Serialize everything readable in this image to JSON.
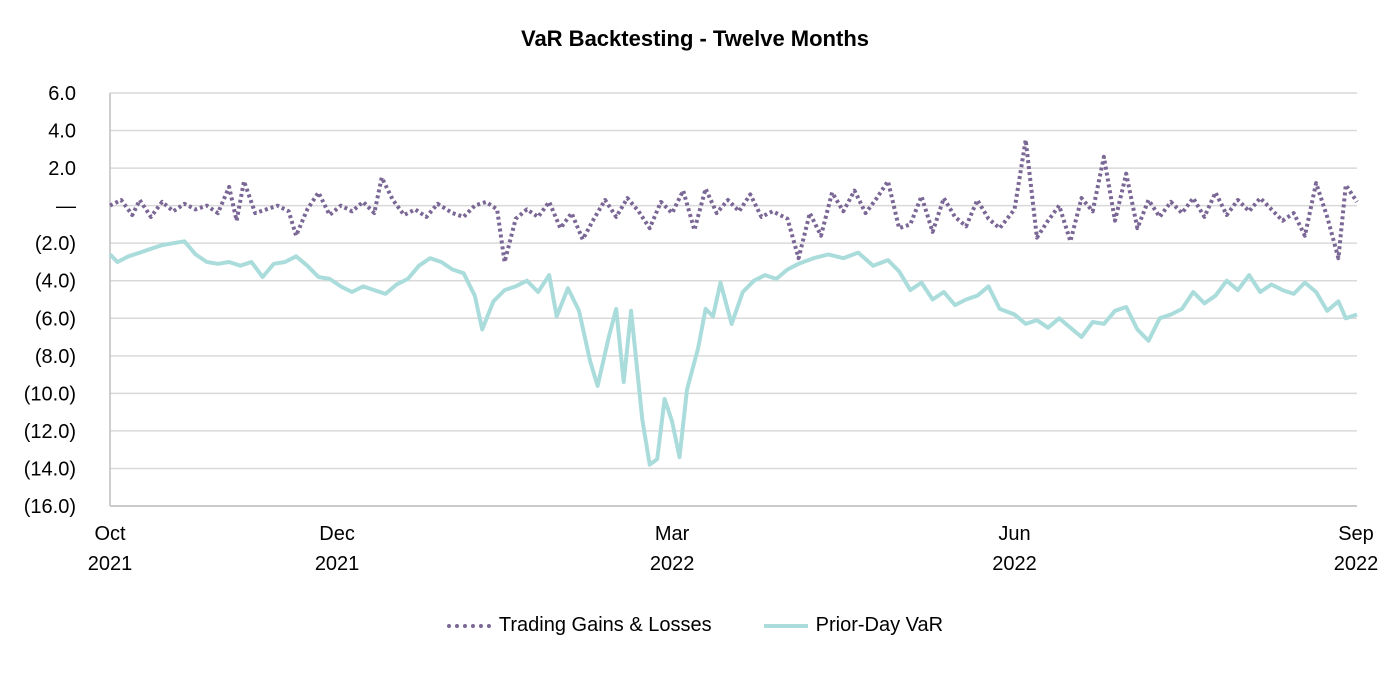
{
  "chart_data": {
    "type": "line",
    "title": "VaR Backtesting - Twelve Months",
    "ylim": [
      -16.0,
      6.0
    ],
    "y_ticks": [
      6,
      4,
      2,
      0,
      -2,
      -4,
      -6,
      -8,
      -10,
      -12,
      -14,
      -16
    ],
    "y_tick_labels": [
      "6.0",
      "4.0",
      "2.0",
      "—",
      "(2.0)",
      "(4.0)",
      "(6.0)",
      "(8.0)",
      "(10.0)",
      "(12.0)",
      "(14.0)",
      "(16.0)"
    ],
    "x_ticks": [
      {
        "line1": "Oct",
        "line2": "2021",
        "date": "2021-10-01"
      },
      {
        "line1": "Dec",
        "line2": "2021",
        "date": "2021-12-01"
      },
      {
        "line1": "Mar",
        "line2": "2022",
        "date": "2022-03-01"
      },
      {
        "line1": "Jun",
        "line2": "2022",
        "date": "2022-06-01"
      },
      {
        "line1": "Sep",
        "line2": "2022",
        "date": "2022-09-01"
      }
    ],
    "x_range": [
      "2021-10-01",
      "2022-09-01"
    ],
    "grid": true,
    "legend_position": "bottom",
    "series": [
      {
        "name": "Trading Gains & Losses",
        "color": "#7b6796",
        "style": "dotted",
        "points": [
          [
            "2021-10-01",
            0.0
          ],
          [
            "2021-10-04",
            0.3
          ],
          [
            "2021-10-07",
            -0.5
          ],
          [
            "2021-10-09",
            0.3
          ],
          [
            "2021-10-12",
            -0.6
          ],
          [
            "2021-10-15",
            0.2
          ],
          [
            "2021-10-18",
            -0.3
          ],
          [
            "2021-10-21",
            0.1
          ],
          [
            "2021-10-24",
            -0.2
          ],
          [
            "2021-10-27",
            0.0
          ],
          [
            "2021-10-30",
            -0.4
          ],
          [
            "2021-11-02",
            1.0
          ],
          [
            "2021-11-04",
            -0.8
          ],
          [
            "2021-11-06",
            1.3
          ],
          [
            "2021-11-09",
            -0.4
          ],
          [
            "2021-11-12",
            -0.2
          ],
          [
            "2021-11-15",
            0.0
          ],
          [
            "2021-11-18",
            -0.3
          ],
          [
            "2021-11-20",
            -1.6
          ],
          [
            "2021-11-23",
            -0.2
          ],
          [
            "2021-11-26",
            0.7
          ],
          [
            "2021-11-29",
            -0.5
          ],
          [
            "2021-12-02",
            0.0
          ],
          [
            "2021-12-05",
            -0.3
          ],
          [
            "2021-12-08",
            0.2
          ],
          [
            "2021-12-11",
            -0.4
          ],
          [
            "2021-12-13",
            1.5
          ],
          [
            "2021-12-16",
            0.3
          ],
          [
            "2021-12-19",
            -0.5
          ],
          [
            "2021-12-22",
            -0.2
          ],
          [
            "2021-12-25",
            -0.6
          ],
          [
            "2021-12-28",
            0.1
          ],
          [
            "2022-01-01",
            -0.4
          ],
          [
            "2022-01-04",
            -0.6
          ],
          [
            "2022-01-07",
            0.0
          ],
          [
            "2022-01-10",
            0.2
          ],
          [
            "2022-01-13",
            -0.2
          ],
          [
            "2022-01-15",
            -3.0
          ],
          [
            "2022-01-18",
            -0.7
          ],
          [
            "2022-01-21",
            -0.2
          ],
          [
            "2022-01-24",
            -0.6
          ],
          [
            "2022-01-27",
            0.2
          ],
          [
            "2022-01-30",
            -1.2
          ],
          [
            "2022-02-02",
            -0.4
          ],
          [
            "2022-02-05",
            -1.8
          ],
          [
            "2022-02-08",
            -0.7
          ],
          [
            "2022-02-11",
            0.3
          ],
          [
            "2022-02-14",
            -0.6
          ],
          [
            "2022-02-17",
            0.4
          ],
          [
            "2022-02-20",
            -0.3
          ],
          [
            "2022-02-23",
            -1.2
          ],
          [
            "2022-02-26",
            0.2
          ],
          [
            "2022-03-01",
            -0.4
          ],
          [
            "2022-03-04",
            0.8
          ],
          [
            "2022-03-07",
            -1.3
          ],
          [
            "2022-03-10",
            0.9
          ],
          [
            "2022-03-13",
            -0.4
          ],
          [
            "2022-03-16",
            0.3
          ],
          [
            "2022-03-19",
            -0.3
          ],
          [
            "2022-03-22",
            0.6
          ],
          [
            "2022-03-25",
            -0.6
          ],
          [
            "2022-03-28",
            -0.3
          ],
          [
            "2022-04-01",
            -0.7
          ],
          [
            "2022-04-04",
            -2.8
          ],
          [
            "2022-04-07",
            -0.4
          ],
          [
            "2022-04-10",
            -1.6
          ],
          [
            "2022-04-13",
            0.7
          ],
          [
            "2022-04-16",
            -0.3
          ],
          [
            "2022-04-19",
            0.8
          ],
          [
            "2022-04-22",
            -0.4
          ],
          [
            "2022-04-25",
            0.4
          ],
          [
            "2022-04-28",
            1.3
          ],
          [
            "2022-05-01",
            -1.2
          ],
          [
            "2022-05-04",
            -1.0
          ],
          [
            "2022-05-07",
            0.5
          ],
          [
            "2022-05-10",
            -1.4
          ],
          [
            "2022-05-13",
            0.4
          ],
          [
            "2022-05-16",
            -0.6
          ],
          [
            "2022-05-19",
            -1.1
          ],
          [
            "2022-05-22",
            0.3
          ],
          [
            "2022-05-25",
            -0.7
          ],
          [
            "2022-05-28",
            -1.2
          ],
          [
            "2022-06-01",
            -0.2
          ],
          [
            "2022-06-04",
            3.5
          ],
          [
            "2022-06-07",
            -1.7
          ],
          [
            "2022-06-10",
            -0.8
          ],
          [
            "2022-06-13",
            0.0
          ],
          [
            "2022-06-16",
            -1.9
          ],
          [
            "2022-06-19",
            0.4
          ],
          [
            "2022-06-22",
            -0.3
          ],
          [
            "2022-06-25",
            2.6
          ],
          [
            "2022-06-28",
            -0.8
          ],
          [
            "2022-07-01",
            1.7
          ],
          [
            "2022-07-04",
            -1.2
          ],
          [
            "2022-07-07",
            0.3
          ],
          [
            "2022-07-10",
            -0.6
          ],
          [
            "2022-07-13",
            0.2
          ],
          [
            "2022-07-16",
            -0.4
          ],
          [
            "2022-07-19",
            0.4
          ],
          [
            "2022-07-22",
            -0.6
          ],
          [
            "2022-07-25",
            0.7
          ],
          [
            "2022-07-28",
            -0.5
          ],
          [
            "2022-07-31",
            0.3
          ],
          [
            "2022-08-03",
            -0.3
          ],
          [
            "2022-08-06",
            0.4
          ],
          [
            "2022-08-09",
            -0.2
          ],
          [
            "2022-08-12",
            -0.8
          ],
          [
            "2022-08-15",
            -0.4
          ],
          [
            "2022-08-18",
            -1.6
          ],
          [
            "2022-08-21",
            1.2
          ],
          [
            "2022-08-24",
            -0.6
          ],
          [
            "2022-08-27",
            -2.8
          ],
          [
            "2022-08-29",
            1.1
          ],
          [
            "2022-09-01",
            0.2
          ]
        ]
      },
      {
        "name": "Prior-Day VaR",
        "color": "#abdcdc",
        "style": "solid",
        "points": [
          [
            "2021-10-01",
            -2.6
          ],
          [
            "2021-10-03",
            -3.0
          ],
          [
            "2021-10-06",
            -2.7
          ],
          [
            "2021-10-09",
            -2.5
          ],
          [
            "2021-10-12",
            -2.3
          ],
          [
            "2021-10-15",
            -2.1
          ],
          [
            "2021-10-18",
            -2.0
          ],
          [
            "2021-10-21",
            -1.9
          ],
          [
            "2021-10-24",
            -2.6
          ],
          [
            "2021-10-27",
            -3.0
          ],
          [
            "2021-10-30",
            -3.1
          ],
          [
            "2021-11-02",
            -3.0
          ],
          [
            "2021-11-05",
            -3.2
          ],
          [
            "2021-11-08",
            -3.0
          ],
          [
            "2021-11-11",
            -3.8
          ],
          [
            "2021-11-14",
            -3.1
          ],
          [
            "2021-11-17",
            -3.0
          ],
          [
            "2021-11-20",
            -2.7
          ],
          [
            "2021-11-23",
            -3.2
          ],
          [
            "2021-11-26",
            -3.8
          ],
          [
            "2021-11-29",
            -3.9
          ],
          [
            "2021-12-02",
            -4.3
          ],
          [
            "2021-12-05",
            -4.6
          ],
          [
            "2021-12-08",
            -4.3
          ],
          [
            "2021-12-11",
            -4.5
          ],
          [
            "2021-12-14",
            -4.7
          ],
          [
            "2021-12-17",
            -4.2
          ],
          [
            "2021-12-20",
            -3.9
          ],
          [
            "2021-12-23",
            -3.2
          ],
          [
            "2021-12-26",
            -2.8
          ],
          [
            "2021-12-29",
            -3.0
          ],
          [
            "2022-01-01",
            -3.4
          ],
          [
            "2022-01-04",
            -3.6
          ],
          [
            "2022-01-07",
            -4.8
          ],
          [
            "2022-01-09",
            -6.6
          ],
          [
            "2022-01-12",
            -5.1
          ],
          [
            "2022-01-15",
            -4.5
          ],
          [
            "2022-01-18",
            -4.3
          ],
          [
            "2022-01-21",
            -4.0
          ],
          [
            "2022-01-24",
            -4.6
          ],
          [
            "2022-01-27",
            -3.7
          ],
          [
            "2022-01-29",
            -5.9
          ],
          [
            "2022-02-01",
            -4.4
          ],
          [
            "2022-02-04",
            -5.6
          ],
          [
            "2022-02-07",
            -8.3
          ],
          [
            "2022-02-09",
            -9.6
          ],
          [
            "2022-02-12",
            -7.0
          ],
          [
            "2022-02-14",
            -5.5
          ],
          [
            "2022-02-16",
            -9.4
          ],
          [
            "2022-02-18",
            -5.6
          ],
          [
            "2022-02-21",
            -11.4
          ],
          [
            "2022-02-23",
            -13.8
          ],
          [
            "2022-02-25",
            -13.5
          ],
          [
            "2022-02-27",
            -10.3
          ],
          [
            "2022-03-01",
            -11.5
          ],
          [
            "2022-03-03",
            -13.4
          ],
          [
            "2022-03-05",
            -9.8
          ],
          [
            "2022-03-08",
            -7.6
          ],
          [
            "2022-03-10",
            -5.5
          ],
          [
            "2022-03-12",
            -5.9
          ],
          [
            "2022-03-14",
            -4.1
          ],
          [
            "2022-03-17",
            -6.3
          ],
          [
            "2022-03-20",
            -4.6
          ],
          [
            "2022-03-23",
            -4.0
          ],
          [
            "2022-03-26",
            -3.7
          ],
          [
            "2022-03-29",
            -3.9
          ],
          [
            "2022-04-01",
            -3.4
          ],
          [
            "2022-04-04",
            -3.1
          ],
          [
            "2022-04-08",
            -2.8
          ],
          [
            "2022-04-12",
            -2.6
          ],
          [
            "2022-04-16",
            -2.8
          ],
          [
            "2022-04-20",
            -2.5
          ],
          [
            "2022-04-24",
            -3.2
          ],
          [
            "2022-04-28",
            -2.9
          ],
          [
            "2022-05-01",
            -3.5
          ],
          [
            "2022-05-04",
            -4.5
          ],
          [
            "2022-05-07",
            -4.1
          ],
          [
            "2022-05-10",
            -5.0
          ],
          [
            "2022-05-13",
            -4.6
          ],
          [
            "2022-05-16",
            -5.3
          ],
          [
            "2022-05-19",
            -5.0
          ],
          [
            "2022-05-22",
            -4.8
          ],
          [
            "2022-05-25",
            -4.3
          ],
          [
            "2022-05-28",
            -5.5
          ],
          [
            "2022-06-01",
            -5.8
          ],
          [
            "2022-06-04",
            -6.3
          ],
          [
            "2022-06-07",
            -6.1
          ],
          [
            "2022-06-10",
            -6.5
          ],
          [
            "2022-06-13",
            -6.0
          ],
          [
            "2022-06-16",
            -6.5
          ],
          [
            "2022-06-19",
            -7.0
          ],
          [
            "2022-06-22",
            -6.2
          ],
          [
            "2022-06-25",
            -6.3
          ],
          [
            "2022-06-28",
            -5.6
          ],
          [
            "2022-07-01",
            -5.4
          ],
          [
            "2022-07-04",
            -6.6
          ],
          [
            "2022-07-07",
            -7.2
          ],
          [
            "2022-07-10",
            -6.0
          ],
          [
            "2022-07-13",
            -5.8
          ],
          [
            "2022-07-16",
            -5.5
          ],
          [
            "2022-07-19",
            -4.6
          ],
          [
            "2022-07-22",
            -5.2
          ],
          [
            "2022-07-25",
            -4.8
          ],
          [
            "2022-07-28",
            -4.0
          ],
          [
            "2022-07-31",
            -4.5
          ],
          [
            "2022-08-03",
            -3.7
          ],
          [
            "2022-08-06",
            -4.6
          ],
          [
            "2022-08-09",
            -4.2
          ],
          [
            "2022-08-12",
            -4.5
          ],
          [
            "2022-08-15",
            -4.7
          ],
          [
            "2022-08-18",
            -4.1
          ],
          [
            "2022-08-21",
            -4.6
          ],
          [
            "2022-08-24",
            -5.6
          ],
          [
            "2022-08-27",
            -5.1
          ],
          [
            "2022-08-29",
            -6.0
          ],
          [
            "2022-09-01",
            -5.8
          ]
        ]
      }
    ]
  }
}
